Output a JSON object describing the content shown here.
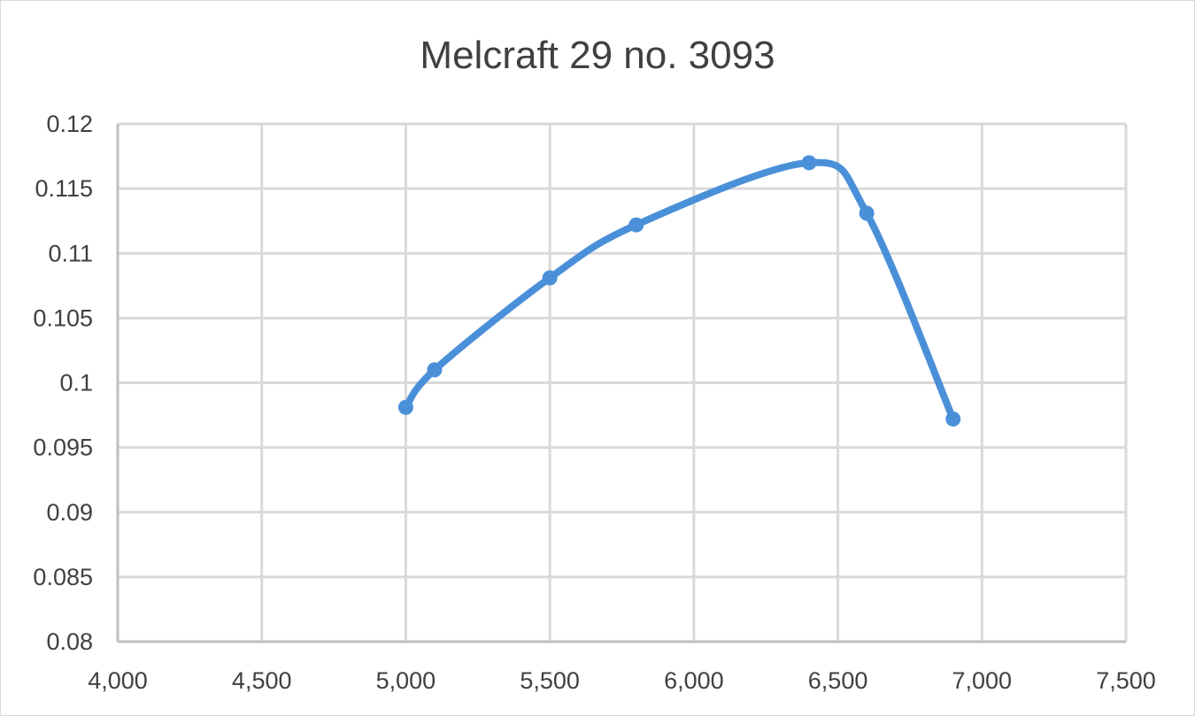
{
  "chart_data": {
    "type": "line",
    "title": "Melcraft 29 no. 3093",
    "xlabel": "",
    "ylabel": "",
    "xlim": [
      4000,
      7500
    ],
    "ylim": [
      0.08,
      0.12
    ],
    "x_ticks": [
      4000,
      4500,
      5000,
      5500,
      6000,
      6500,
      7000,
      7500
    ],
    "x_tick_labels": [
      "4,000",
      "4,500",
      "5,000",
      "5,500",
      "6,000",
      "6,500",
      "7,000",
      "7,500"
    ],
    "y_ticks": [
      0.08,
      0.085,
      0.09,
      0.095,
      0.1,
      0.105,
      0.11,
      0.115,
      0.12
    ],
    "y_tick_labels": [
      "0.08",
      "0.085",
      "0.09",
      "0.095",
      "0.1",
      "0.105",
      "0.11",
      "0.115",
      "0.12"
    ],
    "grid": true,
    "smooth": true,
    "series": [
      {
        "color": "#4a90d9",
        "points": [
          {
            "x": 5000,
            "y": 0.0981
          },
          {
            "x": 5100,
            "y": 0.101
          },
          {
            "x": 5500,
            "y": 0.1081
          },
          {
            "x": 5800,
            "y": 0.1122
          },
          {
            "x": 6400,
            "y": 0.117
          },
          {
            "x": 6600,
            "y": 0.1131
          },
          {
            "x": 6900,
            "y": 0.0972
          }
        ]
      }
    ],
    "colors": {
      "grid": "#d9d9d9",
      "axis": "#bfbfbf",
      "text": "#404040"
    }
  }
}
